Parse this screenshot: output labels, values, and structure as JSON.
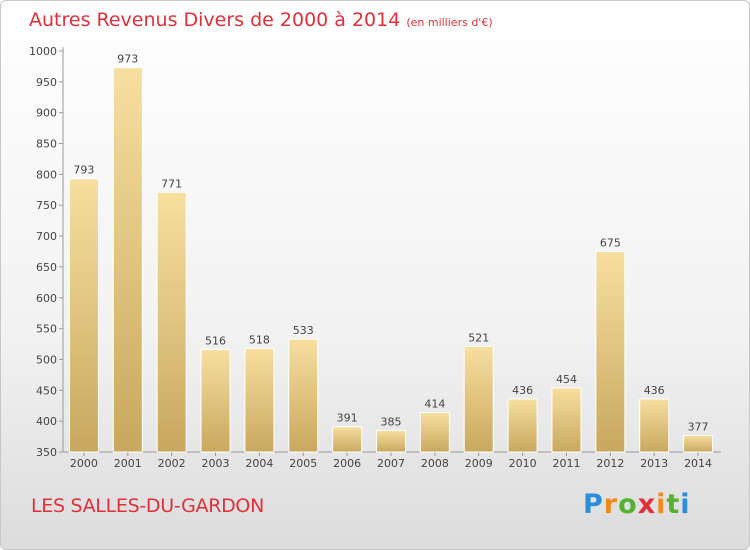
{
  "chart_data": {
    "type": "bar",
    "title": "Autres Revenus Divers de 2000 à 2014",
    "subtitle": "(en milliers d'€)",
    "categories": [
      "2000",
      "2001",
      "2002",
      "2003",
      "2004",
      "2005",
      "2006",
      "2007",
      "2008",
      "2009",
      "2010",
      "2011",
      "2012",
      "2013",
      "2014"
    ],
    "values": [
      793,
      973,
      771,
      516,
      518,
      533,
      391,
      385,
      414,
      521,
      436,
      454,
      675,
      436,
      377
    ],
    "ylim": [
      350,
      1000
    ],
    "yticks": [
      350,
      400,
      450,
      500,
      550,
      600,
      650,
      700,
      750,
      800,
      850,
      900,
      950,
      1000
    ],
    "grid": false,
    "bar_color_top": "#f7dfa0",
    "bar_color_bottom": "#c8a85e"
  },
  "footer": {
    "location": "LES SALLES-DU-GARDON"
  },
  "logo": {
    "letters": [
      "P",
      "r",
      "o",
      "x",
      "i",
      "t",
      "i"
    ],
    "colors": [
      "#2a8fd8",
      "#f08a1c",
      "#58b030",
      "#e0303a",
      "#f08a1c",
      "#58b030",
      "#2a8fd8"
    ]
  }
}
